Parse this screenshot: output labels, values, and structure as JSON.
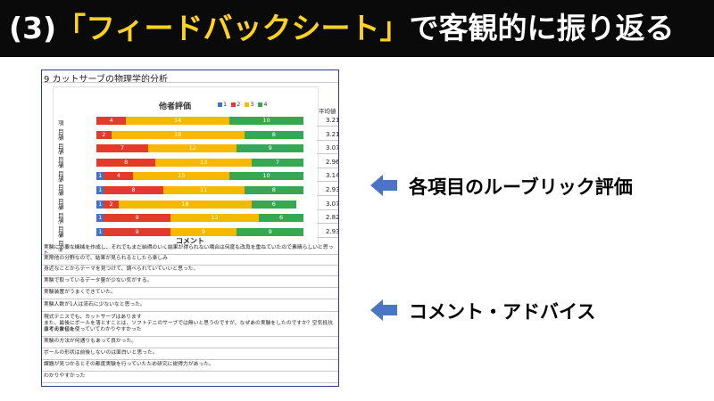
{
  "slide": {
    "title_prefix": "(3)",
    "title_accent": "「フィードバックシート」",
    "title_suffix": "で客観的に振り返る"
  },
  "sheet": {
    "title": "9  カットサーブの物理学的分析",
    "avg_header": "平均値",
    "comment_header": "コメント",
    "comments": [
      "実験に必要な機械を作成し、それでもまだ納得のいく結果が得られない場合は何度も改良を重ねていたので素晴らしいと思った。",
      "実際他の分野なので、結果が見られるとしたら楽しみ",
      "身近なことからテーマを見つけて、調べられていていいと思った。",
      "実験で取っているデータ量が少ない気がする。",
      "実験装置がうまくできていた。",
      "実験人数が1人は流石に少ないなと思った。",
      "現式テニスでも、カットサーブはあります",
      "また、最後にボールを落とすことは、ソフトテニのサーブでは無いと思うのですが、なぜあの実験をしたのですか？空気抵抗は考えました",
      "多くの数値を使っていてわかりやすかった",
      "実験の方法が何通りもあって良かった。",
      "ボールの形状は前後しないのは面白いと思った。",
      "課題が見つかるとその都度実験を行っていたため研究に説得力があった。",
      "わかりやすかった"
    ]
  },
  "chart_data": {
    "type": "bar",
    "stacked": true,
    "orientation": "horizontal",
    "title": "他者評価",
    "legend": [
      "1",
      "2",
      "3",
      "4"
    ],
    "legend_position": "top-right",
    "colors": [
      "#4472c4",
      "#e23b2b",
      "#f6b800",
      "#36a852"
    ],
    "categories": [
      "項目①",
      "項目②",
      "項目③",
      "項目④",
      "項目⑤",
      "項目⑥",
      "項目⑦",
      "項目⑧",
      "項目⑨"
    ],
    "series": [
      {
        "name": "1",
        "values": [
          0,
          0,
          0,
          0,
          1,
          1,
          1,
          1,
          1
        ]
      },
      {
        "name": "2",
        "values": [
          4,
          2,
          7,
          8,
          4,
          8,
          2,
          9,
          9
        ]
      },
      {
        "name": "3",
        "values": [
          14,
          18,
          12,
          13,
          13,
          11,
          18,
          12,
          9
        ]
      },
      {
        "name": "4",
        "values": [
          10,
          8,
          9,
          7,
          10,
          8,
          6,
          6,
          9
        ]
      }
    ],
    "averages": [
      "3.21",
      "3.21",
      "3.07",
      "2.96",
      "3.14",
      "2.93",
      "3.07",
      "2.82",
      "2.93"
    ]
  },
  "callouts": [
    {
      "label": "各項目のルーブリック評価"
    },
    {
      "label": "コメント・アドバイス"
    }
  ]
}
